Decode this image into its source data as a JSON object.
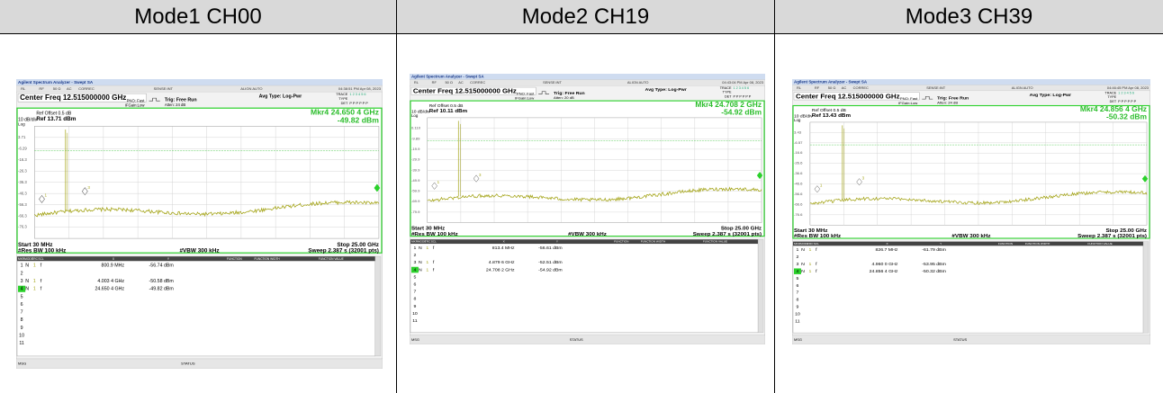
{
  "table": {
    "headers": [
      "Mode1 CH00",
      "Mode2 CH19",
      "Mode3 CH39"
    ]
  },
  "screens": [
    {
      "app_title": "Agilent Spectrum Analyzer - Swept SA",
      "status_items": [
        "RL",
        "RF",
        "50 Ω",
        "AC",
        "CORREC",
        "SENSE:INT",
        "ALIGN AUTO"
      ],
      "timestamp": "04:38:51 PM Apr 08, 2023",
      "center_freq": "Center Freq 12.515000000 GHz",
      "pno": "PNO: Fast",
      "ifgain": "IFGain:Low",
      "trig": "Trig: Free Run",
      "atten": "Atten: 24 dB",
      "avg_type": "Avg Type: Log-Pwr",
      "trace_label": "TRACE",
      "trace_nums": "1 2 3 4 5 6",
      "type_label": "TYPE",
      "det_label": "DET",
      "det_values": "P P P P P P",
      "ref_offset": "Ref Offset 0.5 dB",
      "scale": "10 dB/div",
      "log": "Log",
      "ref_level": "Ref 13.71 dBm",
      "marker_freq": "Mkr4 24.650 4 GHz",
      "marker_amp": "-49.82 dBm",
      "y_labels": [
        "3.71",
        "-6.29",
        "-16.3",
        "-26.3",
        "-36.3",
        "-46.3",
        "-56.3",
        "-66.3",
        "-76.3"
      ],
      "marker_flags": [
        "1",
        "3",
        "4"
      ],
      "start": "Start 30 MHz",
      "stop": "Stop 25.00 GHz",
      "res_bw": "#Res BW 100 kHz",
      "vbw": "#VBW 300 kHz",
      "sweep": "Sweep  2.387 s (32001 pts)",
      "table_headers": [
        "MKR",
        "MODE",
        "TRC",
        "SCL",
        "X",
        "Y",
        "FUNCTION",
        "FUNCTION WIDTH",
        "FUNCTION VALUE"
      ],
      "marker_rows": [
        [
          "1",
          "N",
          "1",
          "f",
          "800.9 MHz",
          "-56.74 dBm"
        ],
        [
          "2"
        ],
        [
          "3",
          "N",
          "1",
          "f",
          "4.003 4 GHz",
          "-50.58 dBm"
        ],
        [
          "4",
          "N",
          "1",
          "f",
          "24.650 4 GHz",
          "-49.82 dBm"
        ],
        [
          "5"
        ],
        [
          "6"
        ],
        [
          "7"
        ],
        [
          "8"
        ],
        [
          "9"
        ],
        [
          "10"
        ],
        [
          "11"
        ]
      ],
      "msg": "MSG",
      "status": "STATUS"
    },
    {
      "app_title": "Agilent Spectrum Analyzer - Swept SA",
      "status_items": [
        "RL",
        "RF",
        "50 Ω",
        "AC",
        "CORREC",
        "SENSE:INT",
        "ALIGN AUTO"
      ],
      "timestamp": "04:43:04 PM Apr 08, 2023",
      "center_freq": "Center Freq 12.515000000 GHz",
      "pno": "PNO: Fast",
      "ifgain": "IFGain:Low",
      "trig": "Trig: Free Run",
      "atten": "Atten: 20 dB",
      "avg_type": "Avg Type: Log-Pwr",
      "trace_label": "TRACE",
      "trace_nums": "1 2 3 4 5 6",
      "type_label": "TYPE",
      "det_label": "DET",
      "det_values": "P P P P P P",
      "ref_offset": "Ref Offset 0.5 dB",
      "scale": "10 dB/div",
      "log": "Log",
      "ref_level": "Ref 10.11 dBm",
      "marker_freq": "Mkr4 24.708 2 GHz",
      "marker_amp": "-54.92 dBm",
      "y_labels": [
        "0.110",
        "-9.89",
        "-19.9",
        "-29.9",
        "-39.9",
        "-49.9",
        "-59.9",
        "-69.9",
        "-79.9"
      ],
      "marker_flags": [
        "1",
        "3",
        "4"
      ],
      "start": "Start 30 MHz",
      "stop": "Stop 25.00 GHz",
      "res_bw": "#Res BW 100 kHz",
      "vbw": "#VBW 300 kHz",
      "sweep": "Sweep  2.387 s (32001 pts)",
      "table_headers": [
        "MKR",
        "MODE",
        "TRC",
        "SCL",
        "X",
        "Y",
        "FUNCTION",
        "FUNCTION WIDTH",
        "FUNCTION VALUE"
      ],
      "marker_rows": [
        [
          "1",
          "N",
          "1",
          "f",
          "813.4 MHz",
          "-56.61 dBm"
        ],
        [
          "2"
        ],
        [
          "3",
          "N",
          "1",
          "f",
          "4.879 6 GHz",
          "-52.51 dBm"
        ],
        [
          "4",
          "N",
          "1",
          "f",
          "24.708 2 GHz",
          "-54.92 dBm"
        ],
        [
          "5"
        ],
        [
          "6"
        ],
        [
          "7"
        ],
        [
          "8"
        ],
        [
          "9"
        ],
        [
          "10"
        ],
        [
          "11"
        ]
      ],
      "msg": "MSG",
      "status": "STATUS"
    },
    {
      "app_title": "Agilent Spectrum Analyzer - Swept SA",
      "status_items": [
        "RL",
        "RF",
        "50 Ω",
        "AC",
        "CORREC",
        "SENSE:INT",
        "ALIGN AUTO"
      ],
      "timestamp": "04:46:45 PM Apr 08, 2023",
      "center_freq": "Center Freq 12.515000000 GHz",
      "pno": "PNO: Fast",
      "ifgain": "IFGain:Low",
      "trig": "Trig: Free Run",
      "atten": "Atten: 24 dB",
      "avg_type": "Avg Type: Log-Pwr",
      "trace_label": "TRACE",
      "trace_nums": "1 2 3 4 5 6",
      "type_label": "TYPE",
      "det_label": "DET",
      "det_values": "P P P P P P",
      "ref_offset": "Ref Offset 0.5 dB",
      "scale": "10 dB/div",
      "log": "Log",
      "ref_level": "Ref 13.43 dBm",
      "marker_freq": "Mkr4 24.856 4 GHz",
      "marker_amp": "-50.32 dBm",
      "y_labels": [
        "3.43",
        "-6.57",
        "-16.6",
        "-26.6",
        "-36.6",
        "-46.6",
        "-56.6",
        "-66.6",
        "-76.6"
      ],
      "marker_flags": [
        "1",
        "3",
        "4"
      ],
      "start": "Start 30 MHz",
      "stop": "Stop 25.00 GHz",
      "res_bw": "#Res BW 100 kHz",
      "vbw": "#VBW 300 kHz",
      "sweep": "Sweep  2.387 s (32001 pts)",
      "table_headers": [
        "MKR",
        "MODE",
        "TRC",
        "SCL",
        "X",
        "Y",
        "FUNCTION",
        "FUNCTION WIDTH",
        "FUNCTION VALUE"
      ],
      "marker_rows": [
        [
          "1",
          "N",
          "1",
          "f",
          "826.7 MHz",
          "-61.79 dBm"
        ],
        [
          "2"
        ],
        [
          "3",
          "N",
          "1",
          "f",
          "4.960 0 GHz",
          "-53.95 dBm"
        ],
        [
          "4",
          "N",
          "1",
          "f",
          "24.856 4 GHz",
          "-50.32 dBm"
        ],
        [
          "5"
        ],
        [
          "6"
        ],
        [
          "7"
        ],
        [
          "8"
        ],
        [
          "9"
        ],
        [
          "10"
        ],
        [
          "11"
        ]
      ],
      "msg": "MSG",
      "status": "STATUS"
    }
  ]
}
